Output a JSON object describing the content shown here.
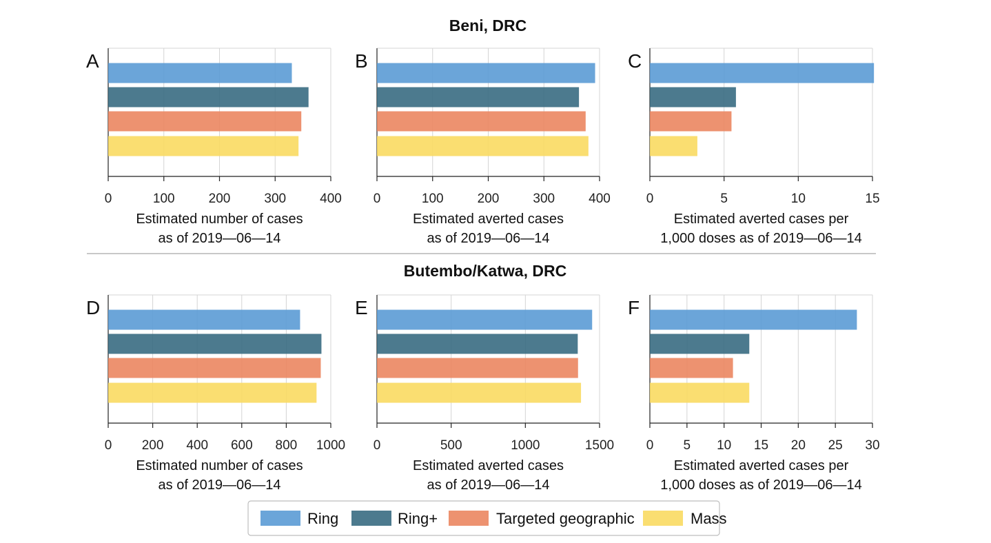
{
  "figure": {
    "sections": [
      {
        "title": "Beni, DRC"
      },
      {
        "title": "Butembo/Katwa, DRC"
      }
    ]
  },
  "legend": {
    "items": [
      {
        "label": "Ring",
        "color": "#5b9bd5"
      },
      {
        "label": "Ring+",
        "color": "#386b82"
      },
      {
        "label": "Targeted geographic",
        "color": "#eb8660"
      },
      {
        "label": "Mass",
        "color": "#f9da62"
      }
    ]
  },
  "chart_data": [
    {
      "type": "bar",
      "orientation": "horizontal",
      "panel": "A",
      "section": "Beni, DRC",
      "categories": [
        "Ring",
        "Ring+",
        "Targeted geographic",
        "Mass"
      ],
      "values": [
        330,
        360,
        347,
        342
      ],
      "xlabel": [
        "Estimated number of cases",
        "as of 2019—06—14"
      ],
      "xlim": [
        0,
        400
      ],
      "xticks": [
        0,
        100,
        200,
        300,
        400
      ],
      "grid": true
    },
    {
      "type": "bar",
      "orientation": "horizontal",
      "panel": "B",
      "section": "Beni, DRC",
      "categories": [
        "Ring",
        "Ring+",
        "Targeted geographic",
        "Mass"
      ],
      "values": [
        392,
        363,
        375,
        380
      ],
      "xlabel": [
        "Estimated averted cases",
        "as of 2019—06—14"
      ],
      "xlim": [
        0,
        400
      ],
      "xticks": [
        0,
        100,
        200,
        300,
        400
      ],
      "grid": true
    },
    {
      "type": "bar",
      "orientation": "horizontal",
      "panel": "C",
      "section": "Beni, DRC",
      "categories": [
        "Ring",
        "Ring+",
        "Targeted geographic",
        "Mass"
      ],
      "values": [
        15.1,
        5.8,
        5.5,
        3.2
      ],
      "xlabel": [
        "Estimated averted cases per",
        "1,000 doses as of 2019—06—14"
      ],
      "xlim": [
        0,
        15
      ],
      "xticks": [
        0,
        5,
        10,
        15
      ],
      "grid": true
    },
    {
      "type": "bar",
      "orientation": "horizontal",
      "panel": "D",
      "section": "Butembo/Katwa, DRC",
      "categories": [
        "Ring",
        "Ring+",
        "Targeted geographic",
        "Mass"
      ],
      "values": [
        862,
        958,
        955,
        936
      ],
      "xlabel": [
        "Estimated number of cases",
        "as of 2019—06—14"
      ],
      "xlim": [
        0,
        1000
      ],
      "xticks": [
        0,
        200,
        400,
        600,
        800,
        1000
      ],
      "grid": true
    },
    {
      "type": "bar",
      "orientation": "horizontal",
      "panel": "E",
      "section": "Butembo/Katwa, DRC",
      "categories": [
        "Ring",
        "Ring+",
        "Targeted geographic",
        "Mass"
      ],
      "values": [
        1450,
        1353,
        1355,
        1375
      ],
      "xlabel": [
        "Estimated averted cases",
        "as of 2019—06—14"
      ],
      "xlim": [
        0,
        1500
      ],
      "xticks": [
        0,
        500,
        1000,
        1500
      ],
      "grid": true
    },
    {
      "type": "bar",
      "orientation": "horizontal",
      "panel": "F",
      "section": "Butembo/Katwa, DRC",
      "categories": [
        "Ring",
        "Ring+",
        "Targeted geographic",
        "Mass"
      ],
      "values": [
        27.9,
        13.4,
        11.2,
        13.4
      ],
      "xlabel": [
        "Estimated averted cases per",
        "1,000 doses as of 2019—06—14"
      ],
      "xlim": [
        0,
        30
      ],
      "xticks": [
        0,
        5,
        10,
        15,
        20,
        25,
        30
      ],
      "grid": true
    }
  ]
}
